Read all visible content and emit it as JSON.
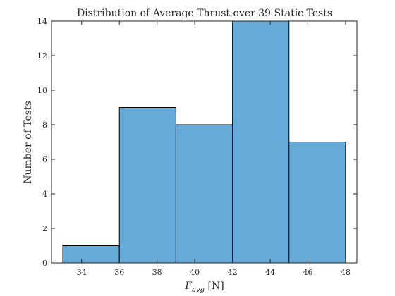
{
  "chart_data": {
    "type": "histogram",
    "title": "Distribution of Average Thrust over 39 Static Tests",
    "xlabel": {
      "main": "F",
      "subscript": "avg",
      "unit": "[N]"
    },
    "ylabel": "Number of Tests",
    "xlim": [
      32.4,
      48.6
    ],
    "ylim": [
      0,
      14
    ],
    "xticks": [
      34,
      36,
      38,
      40,
      42,
      44,
      46,
      48
    ],
    "yticks": [
      0,
      2,
      4,
      6,
      8,
      10,
      12,
      14
    ],
    "bins": [
      {
        "x0": 33,
        "x1": 36,
        "count": 1
      },
      {
        "x0": 36,
        "x1": 39,
        "count": 9
      },
      {
        "x0": 39,
        "x1": 42,
        "count": 8
      },
      {
        "x0": 42,
        "x1": 45,
        "count": 14
      },
      {
        "x0": 45,
        "x1": 48,
        "count": 7
      }
    ],
    "bar_color": "#65aad8",
    "edge_color": "#000000",
    "grid": false
  }
}
